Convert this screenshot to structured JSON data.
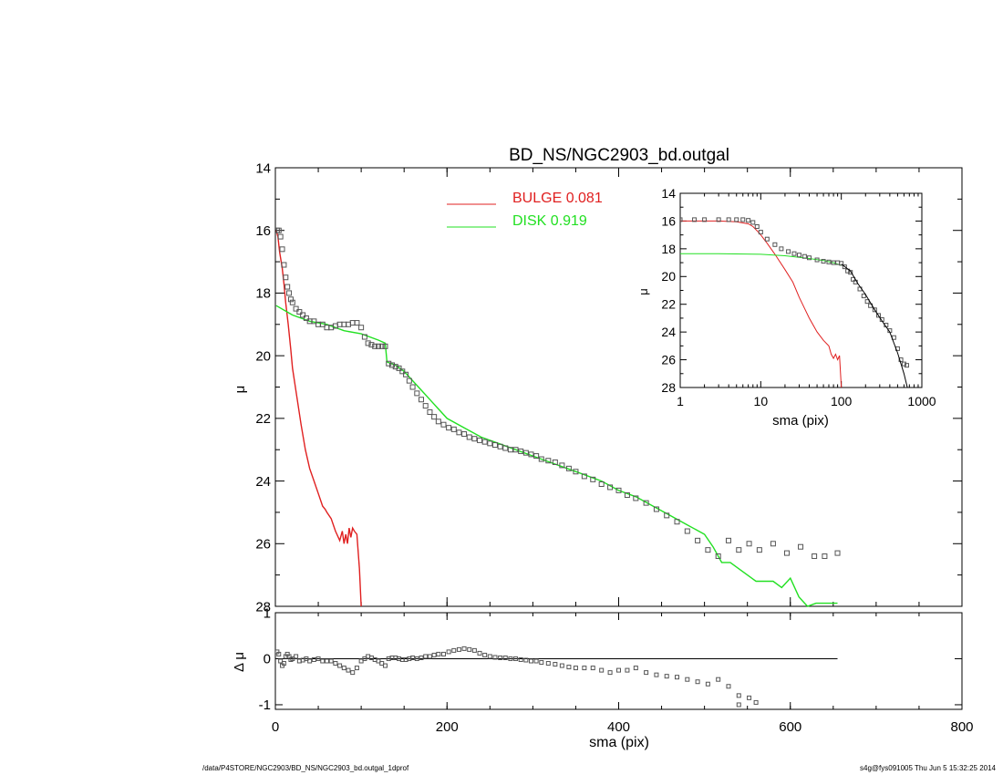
{
  "footer": {
    "path": "/data/P4STORE/NGC2903/BD_NS/NGC2903_bd.outgal_1dprof",
    "stamp": "s4g@fys091005  Thu Jun  5 15:32:25 2014"
  },
  "colors": {
    "bulge": "#e02020",
    "disk": "#22e022",
    "data": "#555555",
    "axis": "#000000"
  },
  "chart_data": [
    {
      "type": "line",
      "id": "main",
      "title": "BD_NS/NGC2903_bd.outgal",
      "xlabel": "",
      "ylabel": "μ",
      "xlim": [
        0,
        800
      ],
      "ylim": [
        28,
        14
      ],
      "x_ticks": [
        0,
        200,
        400,
        600,
        800
      ],
      "x_ticklabels": [
        "",
        "",
        "",
        "",
        ""
      ],
      "y_ticks": [
        14,
        16,
        18,
        20,
        22,
        24,
        26,
        28
      ],
      "y_ticklabels": [
        "14",
        "16",
        "18",
        "20",
        "22",
        "24",
        "26",
        "28"
      ],
      "legend": [
        {
          "label": "BULGE",
          "value": "0.081",
          "color": "#e02020"
        },
        {
          "label": "DISK",
          "value": "0.919",
          "color": "#22e022"
        }
      ],
      "legend_position": "top-center",
      "series": [
        {
          "name": "BULGE",
          "kind": "line",
          "color": "#e02020",
          "x": [
            1,
            3,
            5,
            8,
            10,
            12,
            15,
            18,
            20,
            25,
            30,
            35,
            40,
            45,
            50,
            55,
            58,
            60,
            65,
            70,
            75,
            78,
            80,
            82,
            84,
            86,
            88,
            90,
            92,
            95,
            98,
            100
          ],
          "y": [
            16.0,
            16.2,
            16.7,
            17.2,
            17.7,
            18.3,
            19.0,
            19.8,
            20.4,
            21.3,
            22.2,
            23.0,
            23.6,
            24.0,
            24.4,
            24.8,
            24.9,
            25.0,
            25.2,
            25.6,
            25.9,
            25.6,
            26.0,
            25.7,
            26.0,
            25.5,
            25.8,
            25.5,
            25.6,
            25.7,
            26.8,
            28.0
          ]
        },
        {
          "name": "DISK",
          "kind": "line",
          "color": "#22e022",
          "x": [
            1,
            20,
            40,
            60,
            80,
            100,
            120,
            128,
            130,
            140,
            150,
            160,
            170,
            180,
            190,
            200,
            220,
            240,
            260,
            280,
            300,
            320,
            340,
            360,
            380,
            400,
            420,
            440,
            460,
            480,
            500,
            510,
            520,
            530,
            540,
            560,
            580,
            590,
            600,
            610,
            620,
            630,
            640,
            655
          ],
          "y": [
            18.4,
            18.7,
            18.9,
            19.0,
            19.2,
            19.3,
            19.5,
            19.6,
            20.2,
            20.3,
            20.5,
            20.8,
            21.1,
            21.4,
            21.7,
            22.0,
            22.3,
            22.6,
            22.8,
            23.0,
            23.2,
            23.4,
            23.6,
            23.8,
            24.0,
            24.3,
            24.5,
            24.8,
            25.1,
            25.4,
            25.7,
            26.1,
            26.6,
            26.6,
            26.8,
            27.2,
            27.2,
            27.4,
            27.1,
            27.7,
            28.0,
            27.9,
            27.9,
            27.9
          ]
        },
        {
          "name": "",
          "kind": "markers",
          "color": "#555555",
          "x": [
            2,
            4,
            6,
            8,
            10,
            12,
            14,
            16,
            18,
            20,
            24,
            28,
            32,
            36,
            40,
            45,
            50,
            55,
            60,
            65,
            70,
            75,
            80,
            85,
            90,
            95,
            100,
            104,
            108,
            112,
            116,
            120,
            124,
            128,
            132,
            136,
            140,
            144,
            148,
            152,
            156,
            160,
            165,
            170,
            175,
            180,
            185,
            190,
            196,
            202,
            208,
            214,
            220,
            226,
            232,
            238,
            244,
            250,
            256,
            262,
            268,
            274,
            280,
            286,
            292,
            298,
            304,
            310,
            318,
            326,
            334,
            342,
            350,
            360,
            370,
            380,
            390,
            400,
            410,
            420,
            432,
            444,
            456,
            468,
            480,
            492,
            504,
            516,
            528,
            540,
            552,
            564,
            580,
            596,
            612,
            628,
            640,
            655
          ],
          "y": [
            16.0,
            16.0,
            16.2,
            16.6,
            17.1,
            17.5,
            17.8,
            18.0,
            18.2,
            18.3,
            18.5,
            18.6,
            18.7,
            18.8,
            18.9,
            18.9,
            19.0,
            19.0,
            19.1,
            19.1,
            19.05,
            19.0,
            19.0,
            19.0,
            18.95,
            18.95,
            19.1,
            19.4,
            19.6,
            19.65,
            19.7,
            19.7,
            19.7,
            19.7,
            20.25,
            20.3,
            20.35,
            20.4,
            20.5,
            20.6,
            20.8,
            21.0,
            21.2,
            21.4,
            21.6,
            21.8,
            21.95,
            22.1,
            22.2,
            22.3,
            22.35,
            22.45,
            22.5,
            22.6,
            22.65,
            22.7,
            22.75,
            22.8,
            22.85,
            22.9,
            22.95,
            23.0,
            23.0,
            23.05,
            23.1,
            23.15,
            23.2,
            23.3,
            23.35,
            23.4,
            23.5,
            23.6,
            23.7,
            23.85,
            23.95,
            24.1,
            24.2,
            24.3,
            24.45,
            24.55,
            24.7,
            24.9,
            25.1,
            25.3,
            25.6,
            25.9,
            26.2,
            26.4,
            25.9,
            26.2,
            26.0,
            26.2,
            26.0,
            26.3,
            26.1,
            26.4,
            26.4,
            26.3
          ]
        }
      ]
    },
    {
      "type": "line",
      "id": "residual",
      "xlabel": "sma (pix)",
      "ylabel": "Δ μ",
      "xlim": [
        0,
        800
      ],
      "ylim": [
        -1.1,
        1.0
      ],
      "x_ticks": [
        0,
        200,
        400,
        600,
        800
      ],
      "x_ticklabels": [
        "0",
        "200",
        "400",
        "600",
        "800"
      ],
      "y_ticks": [
        1,
        0,
        -1
      ],
      "y_ticklabels": [
        "1",
        "0",
        "-1"
      ],
      "zero_line_x": [
        0,
        655
      ],
      "series": [
        {
          "name": "",
          "kind": "markers",
          "color": "#555555",
          "x": [
            2,
            4,
            6,
            8,
            10,
            12,
            14,
            16,
            18,
            20,
            24,
            28,
            32,
            36,
            40,
            45,
            50,
            55,
            60,
            65,
            70,
            75,
            80,
            85,
            90,
            95,
            100,
            104,
            108,
            112,
            116,
            120,
            124,
            128,
            132,
            136,
            140,
            144,
            148,
            152,
            156,
            160,
            165,
            170,
            175,
            180,
            185,
            190,
            196,
            202,
            208,
            214,
            220,
            226,
            232,
            238,
            244,
            250,
            256,
            262,
            268,
            274,
            280,
            286,
            292,
            298,
            304,
            310,
            318,
            326,
            334,
            342,
            350,
            360,
            370,
            380,
            390,
            400,
            410,
            420,
            432,
            444,
            456,
            468,
            480,
            492,
            504,
            516,
            528,
            540,
            552
          ],
          "y": [
            0.15,
            0.1,
            -0.05,
            -0.15,
            -0.1,
            0.05,
            0.1,
            0.05,
            -0.02,
            0.0,
            0.05,
            -0.05,
            -0.03,
            0.0,
            -0.05,
            -0.02,
            0.0,
            -0.05,
            -0.05,
            -0.05,
            -0.1,
            -0.15,
            -0.2,
            -0.25,
            -0.3,
            -0.2,
            -0.05,
            0.0,
            0.05,
            0.02,
            -0.02,
            -0.05,
            -0.1,
            -0.15,
            0.0,
            0.02,
            0.02,
            0.0,
            -0.02,
            -0.02,
            0.0,
            0.02,
            0.0,
            0.02,
            0.05,
            0.05,
            0.08,
            0.1,
            0.1,
            0.15,
            0.18,
            0.2,
            0.22,
            0.2,
            0.18,
            0.12,
            0.08,
            0.05,
            0.03,
            0.02,
            0.02,
            0.0,
            0.0,
            -0.02,
            -0.03,
            -0.05,
            -0.05,
            -0.08,
            -0.1,
            -0.12,
            -0.15,
            -0.18,
            -0.2,
            -0.2,
            -0.2,
            -0.25,
            -0.3,
            -0.25,
            -0.25,
            -0.2,
            -0.3,
            -0.35,
            -0.38,
            -0.4,
            -0.45,
            -0.5,
            -0.55,
            -0.45,
            -0.6,
            -0.8,
            -0.85
          ]
        },
        {
          "name": "",
          "kind": "markers",
          "color": "#555555",
          "x": [
            540,
            560
          ],
          "y": [
            -1.0,
            -0.95
          ]
        }
      ]
    },
    {
      "type": "line",
      "id": "inset",
      "xlabel": "sma (pix)",
      "ylabel": "μ",
      "xscale": "log",
      "xlim": [
        1,
        1000
      ],
      "ylim": [
        28,
        14
      ],
      "x_ticks": [
        1,
        10,
        100,
        1000
      ],
      "x_ticklabels": [
        "1",
        "10",
        "100",
        "1000"
      ],
      "y_ticks": [
        14,
        16,
        18,
        20,
        22,
        24,
        26,
        28
      ],
      "y_ticklabels": [
        "14",
        "16",
        "18",
        "20",
        "22",
        "24",
        "26",
        "28"
      ],
      "series": [
        {
          "name": "BULGE",
          "kind": "line",
          "color": "#e02020",
          "x": [
            1,
            2,
            3,
            5,
            7,
            8,
            9,
            10,
            12,
            15,
            20,
            25,
            30,
            35,
            40,
            50,
            60,
            70,
            75,
            80,
            85,
            90,
            95,
            100
          ],
          "y": [
            16.0,
            16.0,
            16.0,
            16.05,
            16.2,
            16.4,
            16.7,
            17.0,
            17.6,
            18.4,
            19.5,
            20.4,
            21.5,
            22.3,
            23.0,
            24.0,
            24.6,
            25.0,
            25.6,
            25.9,
            25.6,
            26.0,
            25.7,
            28.0
          ]
        },
        {
          "name": "DISK",
          "kind": "line",
          "color": "#22e022",
          "x": [
            1,
            3,
            10,
            20,
            40,
            60,
            80,
            100
          ],
          "y": [
            18.35,
            18.35,
            18.4,
            18.5,
            18.7,
            18.85,
            19.0,
            19.2
          ]
        },
        {
          "name": "",
          "kind": "markers",
          "color": "#555555",
          "x": [
            1,
            1.5,
            2,
            3,
            4,
            5,
            6,
            7,
            8,
            9,
            10,
            12,
            15,
            18,
            22,
            26,
            30,
            35,
            40,
            50,
            60,
            70,
            80,
            90,
            100,
            110,
            120,
            130,
            140,
            150,
            170,
            190,
            210,
            230,
            260,
            290,
            320,
            360,
            400,
            450,
            500,
            550,
            600,
            650
          ],
          "y": [
            15.9,
            15.9,
            15.9,
            15.9,
            15.9,
            15.9,
            15.9,
            15.95,
            16.1,
            16.4,
            16.8,
            17.3,
            17.7,
            18.0,
            18.2,
            18.35,
            18.45,
            18.55,
            18.65,
            18.8,
            18.9,
            18.95,
            19.0,
            19.0,
            19.05,
            19.3,
            19.6,
            19.7,
            20.2,
            20.4,
            20.9,
            21.4,
            21.8,
            22.1,
            22.4,
            22.8,
            23.1,
            23.5,
            23.9,
            24.4,
            25.2,
            26.0,
            26.3,
            26.4
          ]
        },
        {
          "name": "",
          "kind": "line",
          "color": "#000000",
          "x": [
            100,
            130,
            160,
            200,
            260,
            320,
            400,
            500,
            600,
            660
          ],
          "y": [
            19.1,
            19.6,
            20.5,
            21.3,
            22.4,
            23.2,
            24.0,
            25.5,
            27.0,
            28.0
          ]
        }
      ]
    }
  ]
}
